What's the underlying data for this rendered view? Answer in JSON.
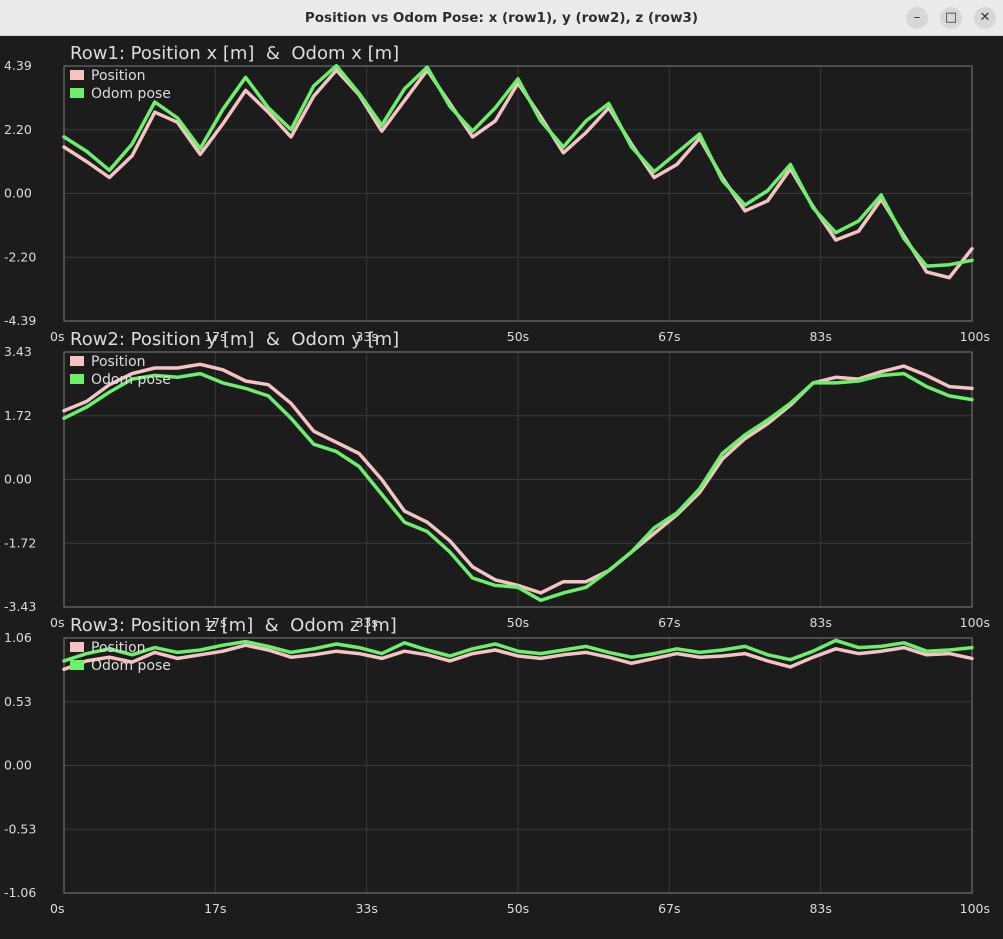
{
  "window": {
    "title": "Position vs Odom Pose: x (row1), y (row2), z (row3)",
    "minimize_glyph": "–",
    "maximize_glyph": "□",
    "close_glyph": "✕"
  },
  "colors": {
    "background": "#1c1c1c",
    "grid": "#3a3a3a",
    "frame": "#6e6e6e",
    "text": "#dcdcdc",
    "position": "#f6c3c3",
    "odom": "#6cf06c"
  },
  "chart_data": [
    {
      "type": "line",
      "title": "Row1: Position x [m]  &  Odom x [m]",
      "xlim": [
        0,
        100
      ],
      "ylim": [
        -4.39,
        4.39
      ],
      "xticks": [
        "0s",
        "17s",
        "33s",
        "50s",
        "67s",
        "83s",
        "100s"
      ],
      "yticks": [
        "4.39",
        "2.20",
        "0.00",
        "-2.20",
        "-4.39"
      ],
      "grid": true,
      "legend": "top-left",
      "series": [
        {
          "name": "Position",
          "x": [
            0,
            2.5,
            5,
            7.5,
            10,
            12.5,
            15,
            17.5,
            20,
            22.5,
            25,
            27.5,
            30,
            32.5,
            35,
            37.5,
            40,
            42.5,
            45,
            47.5,
            50,
            52.5,
            55,
            57.5,
            60,
            62.5,
            65,
            67.5,
            70,
            72.5,
            75,
            77.5,
            80,
            82.5,
            85,
            87.5,
            90,
            92.5,
            95,
            97.5,
            100
          ],
          "y": [
            1.6,
            1.1,
            0.55,
            1.3,
            2.8,
            2.45,
            1.35,
            2.4,
            3.55,
            2.8,
            1.95,
            3.35,
            4.25,
            3.4,
            2.15,
            3.2,
            4.25,
            3.1,
            1.95,
            2.5,
            3.8,
            2.65,
            1.4,
            2.1,
            2.95,
            1.7,
            0.55,
            1.0,
            1.9,
            0.55,
            -0.6,
            -0.25,
            0.85,
            -0.45,
            -1.6,
            -1.3,
            -0.2,
            -1.45,
            -2.7,
            -2.9,
            -1.9
          ]
        },
        {
          "name": "Odom pose",
          "x": [
            0,
            2.5,
            5,
            7.5,
            10,
            12.5,
            15,
            17.5,
            20,
            22.5,
            25,
            27.5,
            30,
            32.5,
            35,
            37.5,
            40,
            42.5,
            45,
            47.5,
            50,
            52.5,
            55,
            57.5,
            60,
            62.5,
            65,
            67.5,
            70,
            72.5,
            75,
            77.5,
            80,
            82.5,
            85,
            87.5,
            90,
            92.5,
            95,
            97.5,
            100
          ],
          "y": [
            1.95,
            1.45,
            0.8,
            1.7,
            3.15,
            2.6,
            1.55,
            2.9,
            4.0,
            2.95,
            2.2,
            3.7,
            4.4,
            3.45,
            2.35,
            3.6,
            4.35,
            3.0,
            2.15,
            2.95,
            3.95,
            2.5,
            1.6,
            2.5,
            3.1,
            1.6,
            0.75,
            1.4,
            2.05,
            0.45,
            -0.4,
            0.1,
            1.0,
            -0.5,
            -1.35,
            -0.95,
            -0.05,
            -1.55,
            -2.5,
            -2.45,
            -2.3
          ]
        }
      ]
    },
    {
      "type": "line",
      "title": "Row2: Position y [m]  &  Odom y [m]",
      "xlim": [
        0,
        100
      ],
      "ylim": [
        -3.43,
        3.43
      ],
      "xticks": [
        "0s",
        "17s",
        "33s",
        "50s",
        "67s",
        "83s",
        "100s"
      ],
      "yticks": [
        "3.43",
        "1.72",
        "0.00",
        "-1.72",
        "-3.43"
      ],
      "grid": true,
      "legend": "top-left",
      "series": [
        {
          "name": "Position",
          "x": [
            0,
            2.5,
            5,
            7.5,
            10,
            12.5,
            15,
            17.5,
            20,
            22.5,
            25,
            27.5,
            30,
            32.5,
            35,
            37.5,
            40,
            42.5,
            45,
            47.5,
            50,
            52.5,
            55,
            57.5,
            60,
            62.5,
            65,
            67.5,
            70,
            72.5,
            75,
            77.5,
            80,
            82.5,
            85,
            87.5,
            90,
            92.5,
            95,
            97.5,
            100
          ],
          "y": [
            1.85,
            2.1,
            2.55,
            2.85,
            3.0,
            3.0,
            3.1,
            2.95,
            2.65,
            2.55,
            2.05,
            1.3,
            1.0,
            0.7,
            0.0,
            -0.85,
            -1.15,
            -1.65,
            -2.35,
            -2.7,
            -2.85,
            -3.05,
            -2.75,
            -2.75,
            -2.45,
            -1.95,
            -1.45,
            -0.95,
            -0.35,
            0.55,
            1.1,
            1.5,
            2.0,
            2.6,
            2.75,
            2.7,
            2.9,
            3.05,
            2.8,
            2.5,
            2.45
          ]
        },
        {
          "name": "Odom pose",
          "x": [
            0,
            2.5,
            5,
            7.5,
            10,
            12.5,
            15,
            17.5,
            20,
            22.5,
            25,
            27.5,
            30,
            32.5,
            35,
            37.5,
            40,
            42.5,
            45,
            47.5,
            50,
            52.5,
            55,
            57.5,
            60,
            62.5,
            65,
            67.5,
            70,
            72.5,
            75,
            77.5,
            80,
            82.5,
            85,
            87.5,
            90,
            92.5,
            95,
            97.5,
            100
          ],
          "y": [
            1.65,
            1.95,
            2.35,
            2.7,
            2.8,
            2.75,
            2.85,
            2.6,
            2.45,
            2.25,
            1.65,
            0.95,
            0.75,
            0.35,
            -0.4,
            -1.15,
            -1.4,
            -1.95,
            -2.65,
            -2.85,
            -2.9,
            -3.25,
            -3.05,
            -2.9,
            -2.45,
            -1.95,
            -1.3,
            -0.9,
            -0.25,
            0.7,
            1.2,
            1.6,
            2.05,
            2.6,
            2.6,
            2.65,
            2.8,
            2.85,
            2.5,
            2.25,
            2.15
          ]
        }
      ]
    },
    {
      "type": "line",
      "title": "Row3: Position z [m]  &  Odom z [m]",
      "xlim": [
        0,
        100
      ],
      "ylim": [
        -1.06,
        1.06
      ],
      "xticks": [
        "0s",
        "17s",
        "33s",
        "50s",
        "67s",
        "83s",
        "100s"
      ],
      "yticks": [
        "1.06",
        "0.53",
        "0.00",
        "-0.53",
        "-1.06"
      ],
      "grid": true,
      "legend": "top-left",
      "series": [
        {
          "name": "Position",
          "x": [
            0,
            2.5,
            5,
            7.5,
            10,
            12.5,
            15,
            17.5,
            20,
            22.5,
            25,
            27.5,
            30,
            32.5,
            35,
            37.5,
            40,
            42.5,
            45,
            47.5,
            50,
            52.5,
            55,
            57.5,
            60,
            62.5,
            65,
            67.5,
            70,
            72.5,
            75,
            77.5,
            80,
            82.5,
            85,
            87.5,
            90,
            92.5,
            95,
            97.5,
            100
          ],
          "y": [
            0.8,
            0.87,
            0.9,
            0.86,
            0.94,
            0.89,
            0.92,
            0.95,
            1.0,
            0.96,
            0.9,
            0.92,
            0.95,
            0.93,
            0.89,
            0.95,
            0.92,
            0.87,
            0.93,
            0.96,
            0.91,
            0.89,
            0.92,
            0.94,
            0.9,
            0.85,
            0.89,
            0.93,
            0.9,
            0.91,
            0.93,
            0.87,
            0.82,
            0.9,
            0.97,
            0.93,
            0.95,
            0.98,
            0.92,
            0.93,
            0.89
          ]
        },
        {
          "name": "Odom pose",
          "x": [
            0,
            2.5,
            5,
            7.5,
            10,
            12.5,
            15,
            17.5,
            20,
            22.5,
            25,
            27.5,
            30,
            32.5,
            35,
            37.5,
            40,
            42.5,
            45,
            47.5,
            50,
            52.5,
            55,
            57.5,
            60,
            62.5,
            65,
            67.5,
            70,
            72.5,
            75,
            77.5,
            80,
            82.5,
            85,
            87.5,
            90,
            92.5,
            95,
            97.5,
            100
          ],
          "y": [
            0.87,
            0.93,
            0.97,
            0.92,
            0.98,
            0.94,
            0.96,
            1.0,
            1.03,
            0.99,
            0.94,
            0.97,
            1.01,
            0.98,
            0.93,
            1.02,
            0.96,
            0.91,
            0.97,
            1.01,
            0.95,
            0.93,
            0.96,
            0.99,
            0.94,
            0.9,
            0.93,
            0.97,
            0.94,
            0.96,
            0.99,
            0.92,
            0.88,
            0.95,
            1.04,
            0.98,
            0.99,
            1.02,
            0.95,
            0.96,
            0.98
          ]
        }
      ]
    }
  ]
}
